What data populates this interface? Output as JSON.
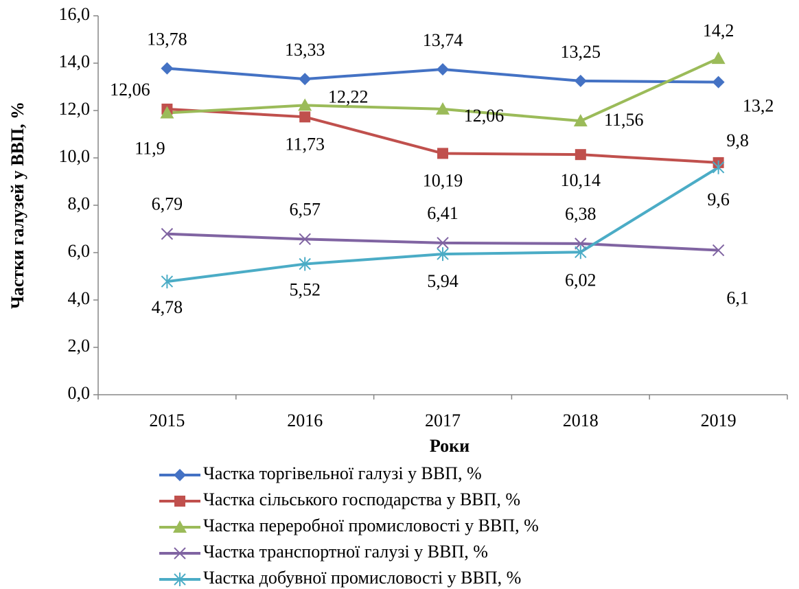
{
  "chart_data": {
    "type": "line",
    "categories": [
      "2015",
      "2016",
      "2017",
      "2018",
      "2019"
    ],
    "x_label": "Роки",
    "y_label": "Частки галузей у ВВП, %",
    "ylim": [
      0,
      16
    ],
    "yticks": [
      {
        "value": 0,
        "label": "0,0"
      },
      {
        "value": 2,
        "label": "2,0"
      },
      {
        "value": 4,
        "label": "4,0"
      },
      {
        "value": 6,
        "label": "6,0"
      },
      {
        "value": 8,
        "label": "8,0"
      },
      {
        "value": 10,
        "label": "10,0"
      },
      {
        "value": 12,
        "label": "12,0"
      },
      {
        "value": 14,
        "label": "14,0"
      },
      {
        "value": 16,
        "label": "16,0"
      }
    ],
    "legend": "bottom",
    "series": [
      {
        "name": "Частка торгівельної галузі у ВВП, %",
        "color": "#4472c4",
        "marker": "diamond",
        "values": [
          13.78,
          13.33,
          13.74,
          13.25,
          13.2
        ],
        "value_labels": [
          "13,78",
          "13,33",
          "13,74",
          "13,25",
          "13,2"
        ]
      },
      {
        "name": "Частка сільського господарства у ВВП, %",
        "color": "#c0504d",
        "marker": "square",
        "values": [
          12.06,
          11.73,
          10.19,
          10.14,
          9.8
        ],
        "value_labels": [
          "12,06",
          "11,73",
          "10,19",
          "10,14",
          "9,8"
        ]
      },
      {
        "name": "Частка переробної промисловості у ВВП, %",
        "color": "#9bbb59",
        "marker": "triangle",
        "values": [
          11.9,
          12.22,
          12.06,
          11.56,
          14.2
        ],
        "value_labels": [
          "11,9",
          "12,22",
          "12,06",
          "11,56",
          "14,2"
        ]
      },
      {
        "name": "Частка транспортної галузі у ВВП, %",
        "color": "#8064a2",
        "marker": "x",
        "values": [
          6.79,
          6.57,
          6.41,
          6.38,
          6.1
        ],
        "value_labels": [
          "6,79",
          "6,57",
          "6,41",
          "6,38",
          "6,1"
        ]
      },
      {
        "name": "Частка добувної промисловості у ВВП, %",
        "color": "#4bacc6",
        "marker": "star",
        "values": [
          4.78,
          5.52,
          5.94,
          6.02,
          9.6
        ],
        "value_labels": [
          "4,78",
          "5,52",
          "5,94",
          "6,02",
          "9,6"
        ]
      }
    ]
  }
}
